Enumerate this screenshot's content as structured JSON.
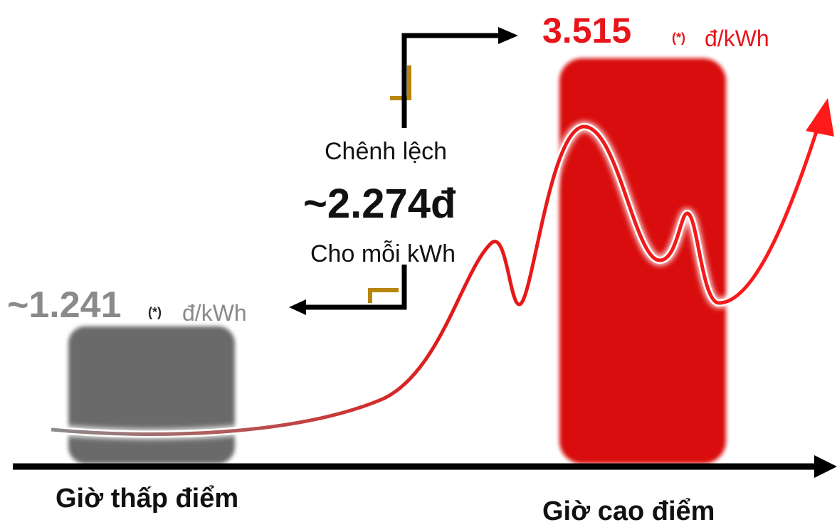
{
  "chart_data": {
    "type": "bar",
    "categories": [
      "Giờ thấp điểm",
      "Giờ cao điểm"
    ],
    "values": [
      1241,
      3515
    ],
    "value_labels": [
      "~1.241",
      "3.515"
    ],
    "unit_label": "đ/kWh",
    "footnote_mark": "(*)",
    "difference": {
      "top_label": "Chênh lệch",
      "value_label": "~2.274đ",
      "bottom_label": "Cho mỗi kWh"
    },
    "colors": {
      "offpeak": "#6b6b6b",
      "peak": "#d90c10",
      "accent_gold": "#b8860b",
      "axis": "#000000"
    }
  }
}
